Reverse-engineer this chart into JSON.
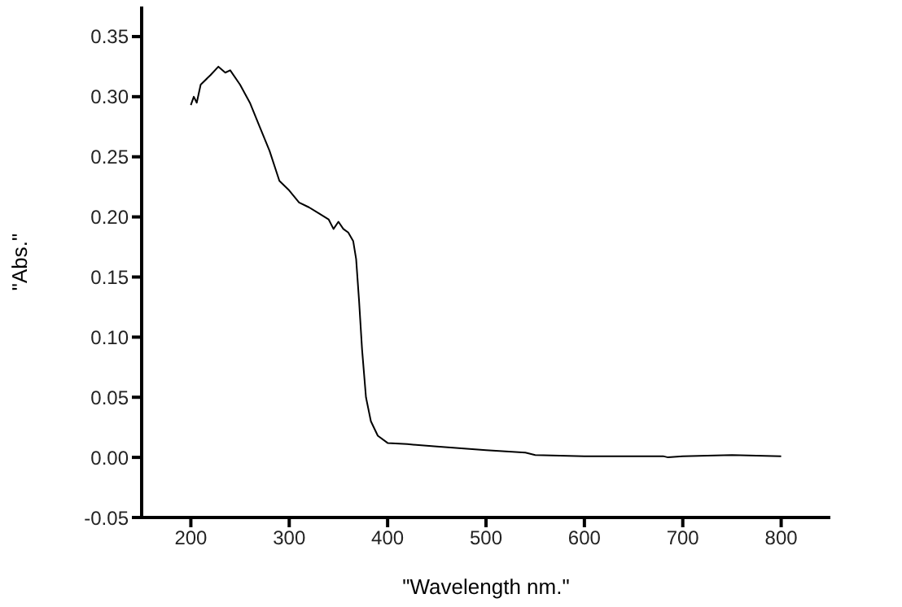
{
  "chart_data": {
    "type": "line",
    "xlabel": "\"Wavelength nm.\"",
    "ylabel": "\"Abs.\"",
    "x": [
      200,
      203,
      206,
      210,
      220,
      228,
      235,
      240,
      250,
      260,
      270,
      280,
      290,
      300,
      310,
      320,
      330,
      340,
      345,
      350,
      355,
      360,
      365,
      368,
      371,
      374,
      378,
      383,
      390,
      400,
      420,
      450,
      500,
      540,
      550,
      600,
      680,
      685,
      700,
      750,
      800
    ],
    "series": [
      {
        "color": "#000000",
        "values": [
          0.293,
          0.3,
          0.295,
          0.31,
          0.318,
          0.325,
          0.32,
          0.322,
          0.31,
          0.295,
          0.275,
          0.255,
          0.23,
          0.222,
          0.212,
          0.208,
          0.203,
          0.198,
          0.19,
          0.196,
          0.19,
          0.187,
          0.18,
          0.165,
          0.13,
          0.09,
          0.05,
          0.03,
          0.018,
          0.012,
          0.011,
          0.009,
          0.006,
          0.004,
          0.002,
          0.001,
          0.001,
          0.0,
          0.001,
          0.002,
          0.001
        ]
      }
    ],
    "xlim": [
      150,
      850
    ],
    "xticks": [
      200,
      300,
      400,
      500,
      600,
      700,
      800
    ],
    "ylim": [
      -0.05,
      0.375
    ],
    "yticks": [
      -0.05,
      {
        "value": 0,
        "label": "0.00"
      },
      0.05,
      {
        "value": 0.1,
        "label": "0.10"
      },
      0.15,
      {
        "value": 0.2,
        "label": "0.20"
      },
      0.25,
      {
        "value": 0.3,
        "label": "0.30"
      },
      0.35
    ],
    "grid": false,
    "legend": false,
    "marker": "none",
    "line_style": "solid"
  }
}
